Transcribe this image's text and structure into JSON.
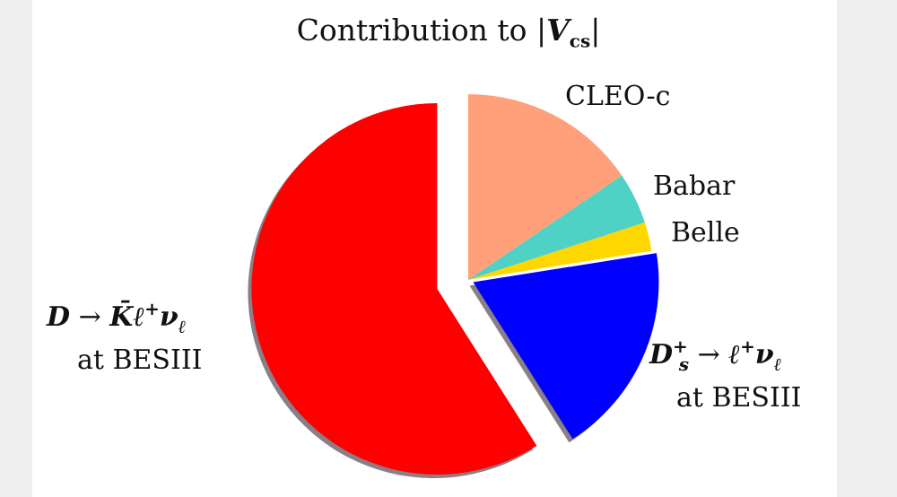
{
  "chart_data": {
    "type": "pie",
    "title": "Contribution to |V_cs|",
    "slices": [
      {
        "label": "CLEO-c",
        "value": 15.5,
        "color": "#FFA07A"
      },
      {
        "label": "Babar",
        "value": 4.5,
        "color": "#4FD1C5"
      },
      {
        "label": "Belle",
        "value": 2.5,
        "color": "#FFD700"
      },
      {
        "label": "D_s^+ → ℓ^+ν_ℓ at BESIII",
        "value": 18.5,
        "color": "#0000FF",
        "exploded": true
      },
      {
        "label": "D → K̄ℓ^+ν_ℓ at BESIII",
        "value": 59.0,
        "color": "#FF0000",
        "exploded": true
      }
    ]
  },
  "labels": {
    "title_prefix": "Contribution to",
    "title_V": "V",
    "title_sub": "cs",
    "cleo": "CLEO-c",
    "babar": "Babar",
    "belle": "Belle",
    "ds_D": "D",
    "ds_sub": "s",
    "ds_sup": "+",
    "ds_arrow": "→",
    "ds_l": "ℓ",
    "ds_lsup": "+",
    "ds_nu": "ν",
    "ds_nusub": "ℓ",
    "ds_at": "at BESIII",
    "dk_D": "D",
    "dk_arrow": "→",
    "dk_K": "K̄",
    "dk_l": "ℓ",
    "dk_lsup": "+",
    "dk_nu": "ν",
    "dk_nusub": "ℓ",
    "dk_at": "at BESIII"
  }
}
